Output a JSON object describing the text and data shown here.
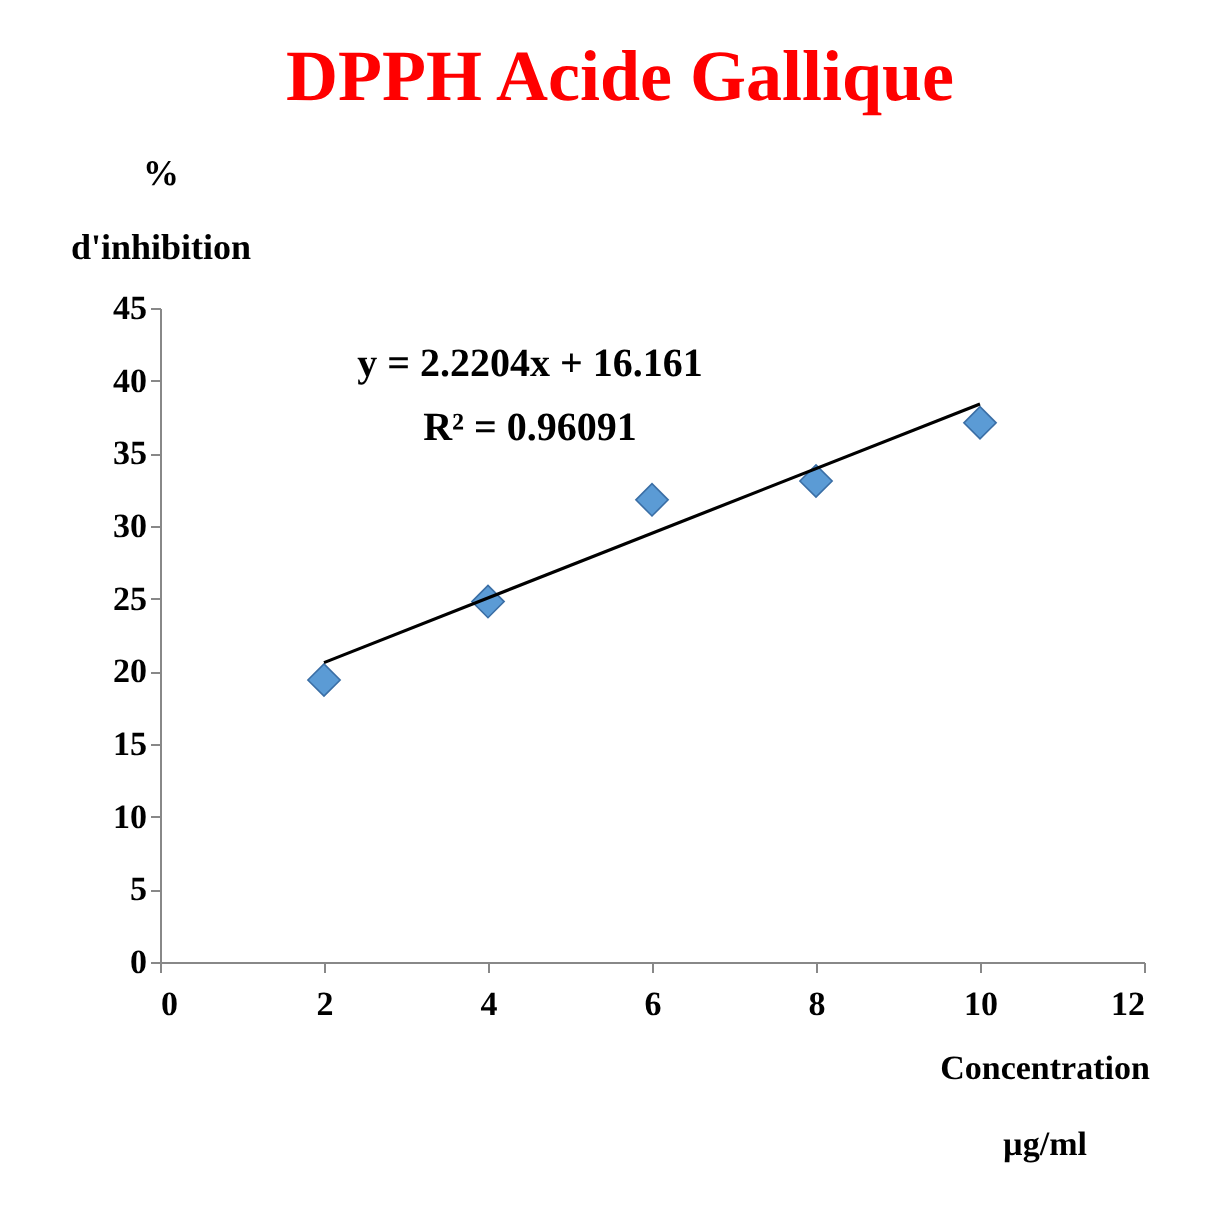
{
  "chart_data": {
    "type": "scatter",
    "title": "DPPH Acide Gallique",
    "ylabel": "%\nd'inhibition",
    "xlabel": "Concentration\nµg/ml",
    "series": [
      {
        "color": "#5b9bd5",
        "marker": "diamond",
        "x": [
          2,
          4,
          6,
          8,
          10
        ],
        "values": [
          19.4,
          24.8,
          31.8,
          33.1,
          37.1
        ]
      },
      {
        "type": "line",
        "color": "#000000",
        "marker": "none",
        "x": [
          2,
          10
        ],
        "values": [
          20.6,
          38.4
        ]
      }
    ],
    "annotations": [
      "y = 2.2204x + 16.161",
      "R² = 0.96091"
    ],
    "xlim": [
      0,
      12
    ],
    "xticks": [
      0,
      2,
      4,
      6,
      8,
      10,
      12
    ],
    "ylim": [
      0,
      45
    ],
    "yticks": [
      0,
      5,
      10,
      15,
      20,
      25,
      30,
      35,
      40,
      45
    ],
    "grid": false,
    "legend": false
  }
}
